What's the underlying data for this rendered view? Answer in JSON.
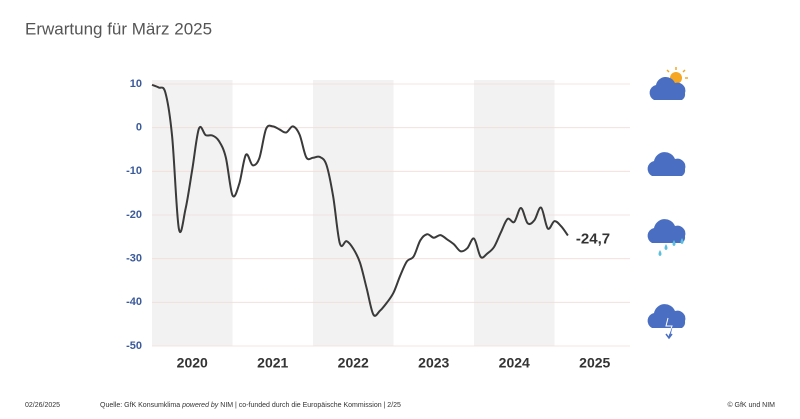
{
  "chart_data": {
    "type": "line",
    "title": "Erwartung für März 2025",
    "x": [
      2020.0,
      2020.0833,
      2020.1667,
      2020.25,
      2020.3333,
      2020.4167,
      2020.5,
      2020.5833,
      2020.6667,
      2020.75,
      2020.8333,
      2020.9167,
      2021.0,
      2021.0833,
      2021.1667,
      2021.25,
      2021.3333,
      2021.4167,
      2021.5,
      2021.5833,
      2021.6667,
      2021.75,
      2021.8333,
      2021.9167,
      2022.0,
      2022.0833,
      2022.1667,
      2022.25,
      2022.3333,
      2022.4167,
      2022.5,
      2022.5833,
      2022.6667,
      2022.75,
      2022.8333,
      2022.9167,
      2023.0,
      2023.0833,
      2023.1667,
      2023.25,
      2023.3333,
      2023.4167,
      2023.5,
      2023.5833,
      2023.6667,
      2023.75,
      2023.8333,
      2023.9167,
      2024.0,
      2024.0833,
      2024.1667,
      2024.25,
      2024.3333,
      2024.4167,
      2024.5,
      2024.5833,
      2024.6667,
      2024.75,
      2024.8333,
      2024.9167,
      2025.0,
      2025.0833,
      2025.1667
    ],
    "series": [
      {
        "color": "#3a3a3a",
        "values": [
          9.8,
          9.2,
          8.0,
          -2.0,
          -23.1,
          -18.6,
          -9.6,
          -0.2,
          -1.7,
          -1.8,
          -3.1,
          -6.8,
          -15.5,
          -12.9,
          -6.2,
          -8.6,
          -7.0,
          -0.3,
          0.3,
          -0.4,
          -1.1,
          0.3,
          -1.6,
          -6.8,
          -6.9,
          -6.7,
          -8.5,
          -15.7,
          -26.5,
          -26.0,
          -27.7,
          -30.9,
          -36.8,
          -42.8,
          -41.9,
          -40.1,
          -37.8,
          -33.9,
          -30.6,
          -29.5,
          -25.8,
          -24.4,
          -25.2,
          -24.6,
          -25.6,
          -26.7,
          -28.3,
          -27.6,
          -25.4,
          -29.6,
          -28.8,
          -27.3,
          -24.0,
          -20.9,
          -21.6,
          -18.4,
          -21.9,
          -21.2,
          -18.3,
          -23.1,
          -21.4,
          -22.6,
          -24.7
        ]
      }
    ],
    "annotations": [
      {
        "text": "-24,7",
        "x": 2025.1667,
        "y": -24.7
      }
    ],
    "xlim": [
      2020,
      2026
    ],
    "xticks": [
      {
        "value": 2020.5,
        "label": "2020"
      },
      {
        "value": 2021.5,
        "label": "2021"
      },
      {
        "value": 2022.5,
        "label": "2022"
      },
      {
        "value": 2023.5,
        "label": "2023"
      },
      {
        "value": 2024.5,
        "label": "2024"
      },
      {
        "value": 2025.5,
        "label": "2025"
      }
    ],
    "shaded_years": [
      2020,
      2022,
      2024
    ],
    "ylim": [
      -50,
      10
    ],
    "yticks": [
      10,
      0,
      -10,
      -20,
      -30,
      -40,
      -50
    ],
    "grid": true
  },
  "footer": {
    "date": "02/26/2025",
    "source": [
      "Quelle: GfK Konsumklima",
      "powered by",
      "NIM | co-funded durch die Europäische Kommission | 2/25"
    ],
    "copyright": "© GfK und NIM"
  }
}
